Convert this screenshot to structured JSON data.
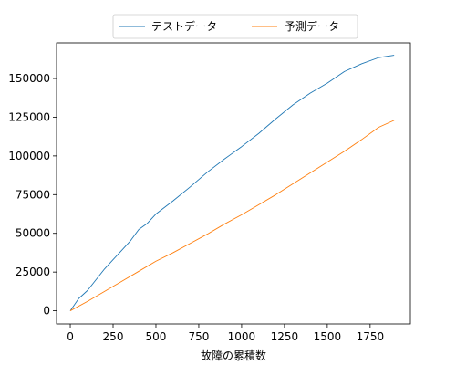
{
  "chart_data": {
    "type": "line",
    "title": "",
    "xlabel": "故障の累積数",
    "ylabel": "",
    "xlim": [
      -80,
      1985
    ],
    "ylim": [
      -8500,
      173000
    ],
    "xticks": [
      0,
      250,
      500,
      750,
      1000,
      1250,
      1500,
      1750
    ],
    "yticks": [
      0,
      25000,
      50000,
      75000,
      100000,
      125000,
      150000
    ],
    "grid": false,
    "legend": {
      "placement": "top-center",
      "columns": 2
    },
    "series": [
      {
        "name": "テストデータ",
        "color": "#1f77b4",
        "x": [
          0,
          50,
          100,
          150,
          200,
          250,
          300,
          350,
          400,
          450,
          500,
          600,
          700,
          800,
          900,
          1000,
          1100,
          1200,
          1300,
          1400,
          1500,
          1600,
          1700,
          1800,
          1890
        ],
        "y": [
          0,
          8000,
          13000,
          20000,
          27000,
          33000,
          39000,
          45000,
          52500,
          56500,
          62500,
          71000,
          80000,
          89500,
          98000,
          106000,
          114500,
          124000,
          133000,
          140500,
          147000,
          154500,
          159500,
          163500,
          165000
        ]
      },
      {
        "name": "予測データ",
        "color": "#ff7f0e",
        "x": [
          0,
          100,
          200,
          300,
          400,
          500,
          600,
          700,
          800,
          900,
          1000,
          1100,
          1200,
          1300,
          1400,
          1500,
          1600,
          1700,
          1800,
          1890
        ],
        "y": [
          0,
          6000,
          12500,
          19000,
          25500,
          32000,
          37500,
          43500,
          49500,
          56000,
          62000,
          68500,
          75000,
          82000,
          89000,
          96000,
          103000,
          110500,
          118500,
          123000
        ]
      }
    ]
  }
}
